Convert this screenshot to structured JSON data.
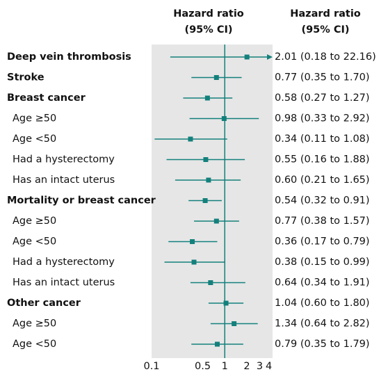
{
  "chart_data": {
    "type": "forest",
    "plot_header": [
      "Hazard ratio",
      "(95% CI)"
    ],
    "value_header": [
      "Hazard ratio",
      "(95% CI)"
    ],
    "categories": [
      "Deep vein thrombosis",
      "Stroke",
      "Breast cancer",
      "Age ≥50",
      "Age <50",
      "Had a hysterectomy",
      "Has an intact uterus",
      "Mortality or breast cancer",
      "Age ≥50",
      "Age <50",
      "Had a hysterectomy",
      "Has an intact uterus",
      "Other cancer",
      "Age ≥50",
      "Age <50"
    ],
    "level": [
      0,
      0,
      0,
      1,
      1,
      1,
      1,
      0,
      1,
      1,
      1,
      1,
      0,
      1,
      1
    ],
    "values": [
      2.01,
      0.77,
      0.58,
      0.98,
      0.34,
      0.55,
      0.6,
      0.54,
      0.77,
      0.36,
      0.38,
      0.64,
      1.04,
      1.34,
      0.79
    ],
    "lower": [
      0.18,
      0.35,
      0.27,
      0.33,
      0.11,
      0.16,
      0.21,
      0.32,
      0.38,
      0.17,
      0.15,
      0.34,
      0.6,
      0.64,
      0.35
    ],
    "upper": [
      22.16,
      1.7,
      1.27,
      2.92,
      1.08,
      1.88,
      1.65,
      0.91,
      1.57,
      0.79,
      0.99,
      1.91,
      1.8,
      2.82,
      1.79
    ],
    "value_labels": [
      "2.01 (0.18 to 22.16)",
      "0.77 (0.35 to 1.70)",
      "0.58 (0.27 to 1.27)",
      "0.98 (0.33 to 2.92)",
      "0.34 (0.11 to 1.08)",
      "0.55 (0.16 to 1.88)",
      "0.60 (0.21 to 1.65)",
      "0.54 (0.32 to 0.91)",
      "0.77 (0.38 to 1.57)",
      "0.36 (0.17 to 0.79)",
      "0.38 (0.15 to 0.99)",
      "0.64 (0.34 to 1.91)",
      "1.04 (0.60 to 1.80)",
      "1.34 (0.64 to 2.82)",
      "0.79 (0.35 to 1.79)"
    ],
    "xlim": [
      0.1,
      4.5
    ],
    "xticks": [
      0.1,
      0.5,
      1,
      2,
      3,
      4
    ],
    "log_x": true,
    "reference_line": 1,
    "color": "#13807c",
    "background": "#e6e6e6"
  }
}
